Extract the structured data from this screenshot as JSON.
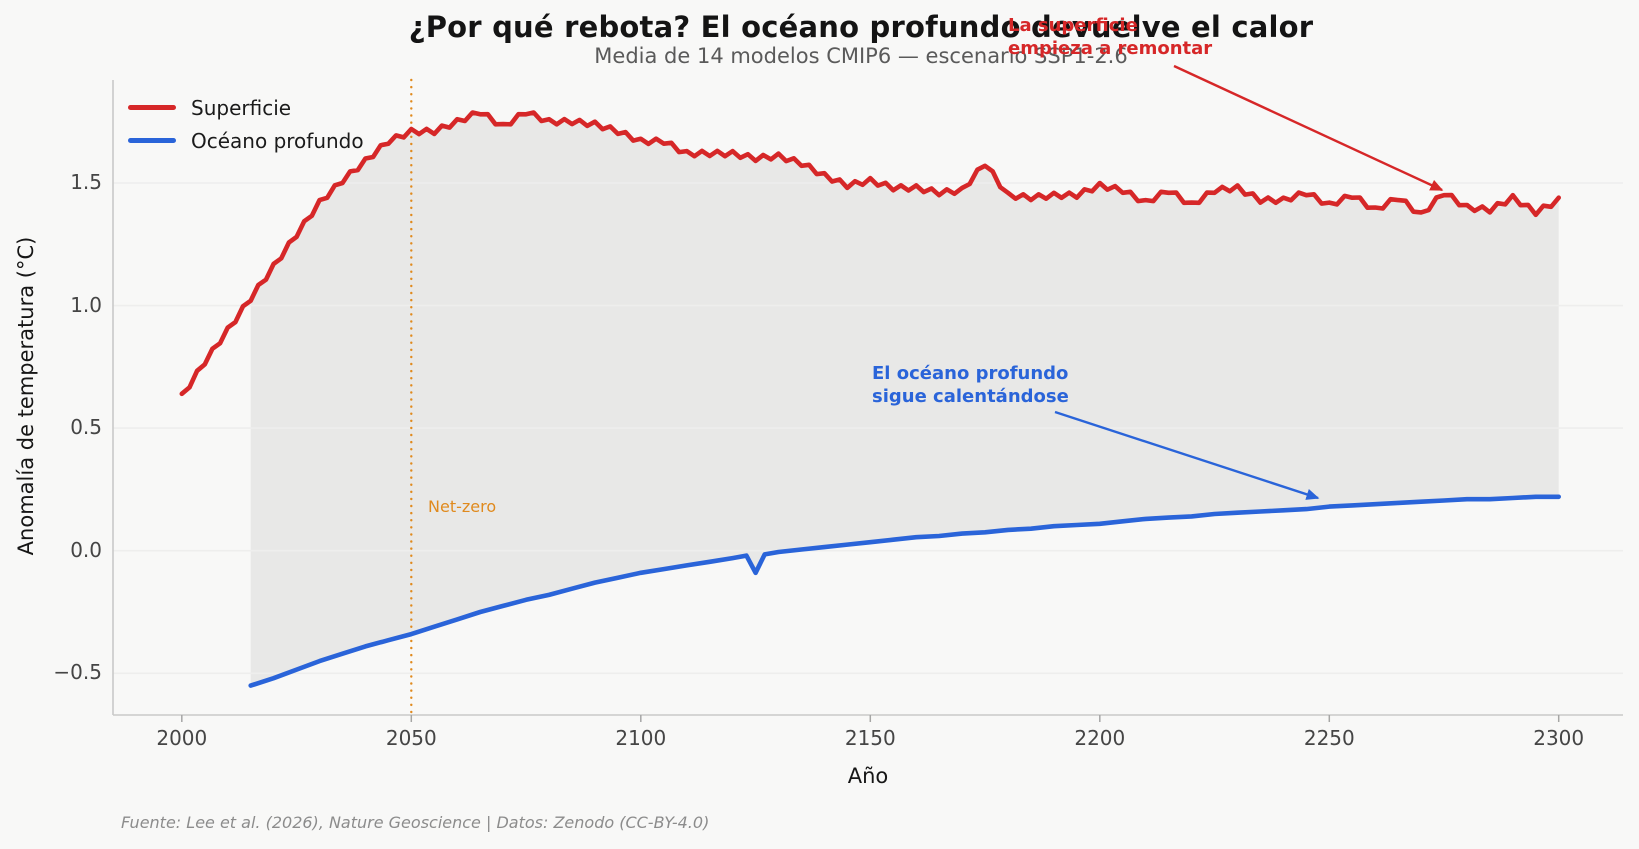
{
  "figure": {
    "title": "¿Por qué rebota? El océano profundo devuelve el calor",
    "subtitle": "Media de 14 modelos CMIP6 — escenario SSP1-2.6",
    "xlabel": "Año",
    "ylabel": "Anomalía de temperatura (°C)",
    "footer": "Fuente: Lee et al. (2026), Nature Geoscience | Datos: Zenodo (CC-BY-4.0)",
    "background": "#f8f8f7"
  },
  "legend": {
    "items": [
      {
        "label": "Superficie",
        "color": "#d62728"
      },
      {
        "label": "Océano profundo",
        "color": "#2a64d9"
      }
    ]
  },
  "annotations": {
    "surface_rebound": {
      "text": "La superficie\nempieza a remontar",
      "color": "#d62728"
    },
    "deep_warming": {
      "text": "El océano profundo\nsigue calentándose",
      "color": "#2a64d9"
    },
    "netzero": {
      "label": "Net-zero",
      "year": 2050,
      "color": "#e08a1e"
    }
  },
  "chart_data": {
    "type": "line",
    "title": "¿Por qué rebota? El océano profundo devuelve el calor",
    "subtitle": "Media de 14 modelos CMIP6 — escenario SSP1-2.6",
    "xlabel": "Año",
    "ylabel": "Anomalía de temperatura (°C)",
    "xlim": [
      1985,
      2314
    ],
    "ylim": [
      -0.67,
      1.92
    ],
    "x_ticks": [
      2000,
      2050,
      2100,
      2150,
      2200,
      2250,
      2300
    ],
    "y_ticks": [
      {
        "value": 1.5,
        "label": "1.5"
      },
      {
        "value": 1.0,
        "label": "1.0"
      },
      {
        "value": 0.5,
        "label": "0.5"
      },
      {
        "value": 0.0,
        "label": "0.0"
      },
      {
        "value": -0.5,
        "label": "−0.5"
      }
    ],
    "grid": "horizontal",
    "legend_position": "upper left",
    "netzero_year": 2050,
    "fill_between": {
      "between": [
        "Superficie",
        "Océano profundo"
      ],
      "from_year": 2015,
      "color": "#e8e8e7"
    },
    "series": [
      {
        "name": "Superficie",
        "color": "#d62728",
        "noise_amplitude": 0.014,
        "x": [
          2000,
          2005,
          2010,
          2015,
          2020,
          2025,
          2030,
          2035,
          2040,
          2045,
          2050,
          2055,
          2060,
          2065,
          2070,
          2075,
          2080,
          2085,
          2090,
          2095,
          2100,
          2105,
          2110,
          2115,
          2120,
          2125,
          2130,
          2135,
          2140,
          2145,
          2150,
          2155,
          2160,
          2165,
          2170,
          2175,
          2180,
          2185,
          2190,
          2195,
          2200,
          2205,
          2210,
          2215,
          2220,
          2225,
          2230,
          2235,
          2240,
          2245,
          2250,
          2255,
          2260,
          2265,
          2270,
          2275,
          2280,
          2285,
          2290,
          2295,
          2300
        ],
        "y": [
          0.64,
          0.76,
          0.91,
          1.02,
          1.17,
          1.28,
          1.43,
          1.5,
          1.6,
          1.66,
          1.72,
          1.7,
          1.76,
          1.78,
          1.74,
          1.78,
          1.76,
          1.74,
          1.75,
          1.7,
          1.68,
          1.66,
          1.63,
          1.61,
          1.63,
          1.59,
          1.62,
          1.57,
          1.54,
          1.48,
          1.52,
          1.47,
          1.49,
          1.45,
          1.48,
          1.57,
          1.46,
          1.43,
          1.46,
          1.44,
          1.5,
          1.46,
          1.43,
          1.46,
          1.42,
          1.46,
          1.49,
          1.42,
          1.44,
          1.45,
          1.42,
          1.44,
          1.4,
          1.43,
          1.38,
          1.45,
          1.41,
          1.38,
          1.45,
          1.37,
          1.44
        ]
      },
      {
        "name": "Océano profundo",
        "color": "#2a64d9",
        "noise_amplitude": 0,
        "x": [
          2015,
          2020,
          2025,
          2030,
          2035,
          2040,
          2045,
          2050,
          2055,
          2060,
          2065,
          2070,
          2075,
          2080,
          2085,
          2090,
          2095,
          2100,
          2105,
          2110,
          2115,
          2120,
          2123,
          2125,
          2127,
          2130,
          2135,
          2140,
          2145,
          2150,
          2155,
          2160,
          2165,
          2170,
          2175,
          2180,
          2185,
          2190,
          2195,
          2200,
          2205,
          2210,
          2215,
          2220,
          2225,
          2230,
          2235,
          2240,
          2245,
          2250,
          2255,
          2260,
          2265,
          2270,
          2275,
          2280,
          2285,
          2290,
          2295,
          2300
        ],
        "y": [
          -0.55,
          -0.52,
          -0.485,
          -0.45,
          -0.42,
          -0.39,
          -0.365,
          -0.34,
          -0.31,
          -0.28,
          -0.25,
          -0.225,
          -0.2,
          -0.18,
          -0.155,
          -0.13,
          -0.11,
          -0.09,
          -0.075,
          -0.06,
          -0.045,
          -0.03,
          -0.02,
          -0.09,
          -0.015,
          -0.005,
          0.005,
          0.015,
          0.025,
          0.035,
          0.045,
          0.055,
          0.06,
          0.07,
          0.075,
          0.085,
          0.09,
          0.1,
          0.105,
          0.11,
          0.12,
          0.13,
          0.135,
          0.14,
          0.15,
          0.155,
          0.16,
          0.165,
          0.17,
          0.18,
          0.185,
          0.19,
          0.195,
          0.2,
          0.205,
          0.21,
          0.21,
          0.215,
          0.22,
          0.22
        ]
      }
    ]
  }
}
